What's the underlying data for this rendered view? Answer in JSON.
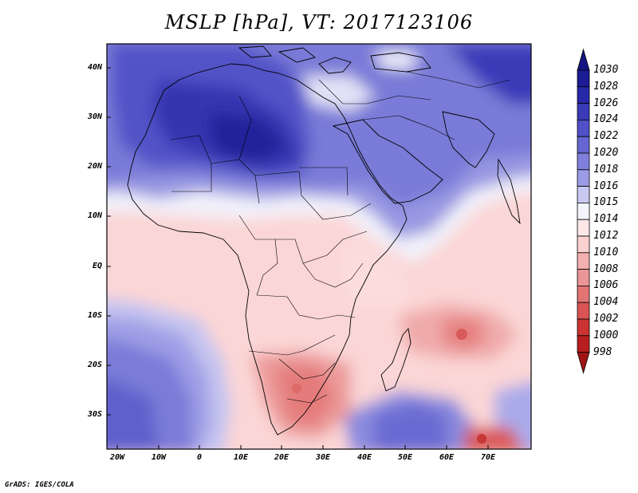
{
  "title": "MSLP [hPa], VT: 2017123106",
  "latitude_labels": [
    "40N",
    "30N",
    "20N",
    "10N",
    "EQ",
    "10S",
    "20S",
    "30S"
  ],
  "longitude_labels": [
    "20W",
    "10W",
    "0",
    "10E",
    "20E",
    "30E",
    "40E",
    "50E",
    "60E",
    "70E"
  ],
  "colorbar": {
    "levels": [
      "1030",
      "1028",
      "1026",
      "1024",
      "1022",
      "1020",
      "1018",
      "1016",
      "1015",
      "1014",
      "1012",
      "1010",
      "1008",
      "1006",
      "1004",
      "1002",
      "1000",
      "998"
    ],
    "colors": [
      "#141482",
      "#1c1c96",
      "#2828aa",
      "#3a3ab8",
      "#5050c8",
      "#6666d2",
      "#8080dc",
      "#9c9ce6",
      "#c8c8f2",
      "#f4f4fc",
      "#fce6e6",
      "#fad0d0",
      "#f2b0b0",
      "#ea9696",
      "#e27474",
      "#da5454",
      "#cc3434",
      "#b81e1e",
      "#a01414"
    ]
  },
  "credit": "GrADS: IGES/COLA"
}
